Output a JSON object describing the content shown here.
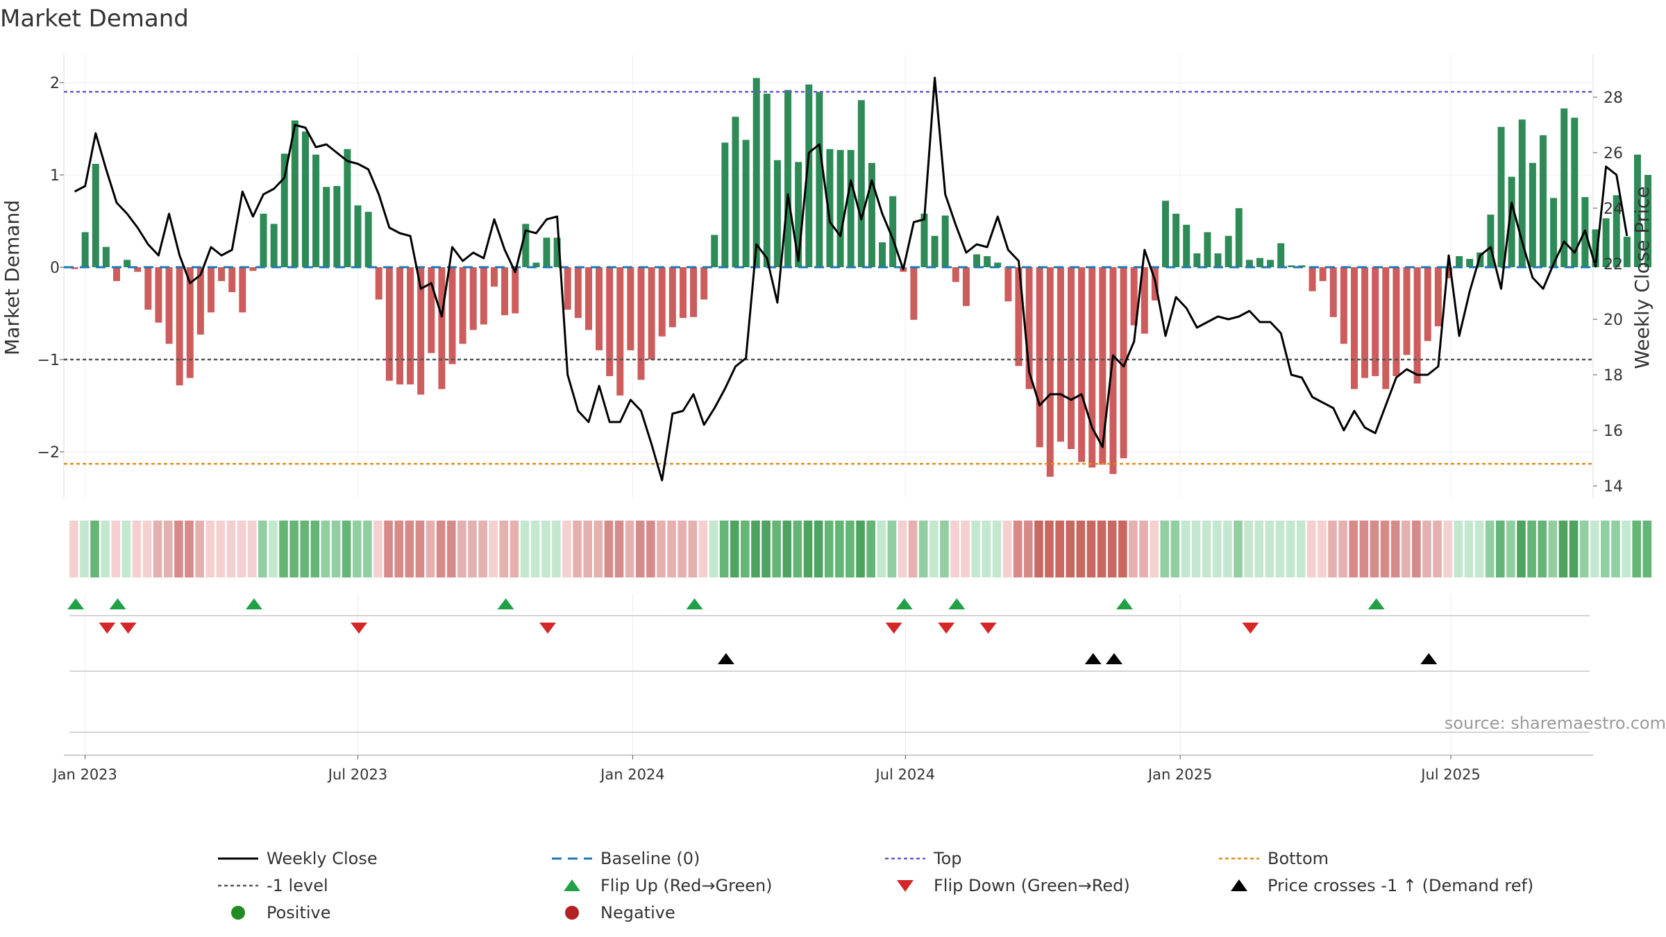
{
  "chart_data": {
    "type": "bar",
    "title": "Market Demand",
    "ylabel_left": "Market Demand",
    "ylabel_right": "Weekly Close Price",
    "left_ylim": [
      -2.4,
      2.2
    ],
    "left_ticks": [
      2,
      1,
      0,
      -1,
      -2
    ],
    "left_tick_labels": [
      "2",
      "1",
      "0",
      "−1",
      "−2"
    ],
    "right_ylim": [
      13.5,
      29.4
    ],
    "right_ticks": [
      28,
      26,
      24,
      22,
      20,
      18,
      16,
      14
    ],
    "right_tick_labels": [
      "28",
      "26",
      "24",
      "22",
      "20",
      "18",
      "16",
      "14"
    ],
    "x_ticks": [
      {
        "label": "Jan 2023",
        "week": 1.5
      },
      {
        "label": "Jul 2023",
        "week": 27.5
      },
      {
        "label": "Jan 2024",
        "week": 53.7
      },
      {
        "label": "Jul 2024",
        "week": 79.7
      },
      {
        "label": "Jan 2025",
        "week": 105.9
      },
      {
        "label": "Jul 2025",
        "week": 131.7
      }
    ],
    "reference_lines": {
      "top": 1.9,
      "bottom": -2.13,
      "minus_one": -1.0,
      "baseline": 0.0
    },
    "demand": [
      -0.02,
      0.38,
      1.12,
      0.22,
      -0.15,
      0.08,
      -0.05,
      -0.46,
      -0.6,
      -0.83,
      -1.28,
      -1.2,
      -0.73,
      -0.49,
      -0.15,
      -0.27,
      -0.49,
      -0.04,
      0.58,
      0.47,
      1.23,
      1.59,
      1.47,
      1.22,
      0.87,
      0.88,
      1.28,
      0.67,
      0.6,
      -0.35,
      -1.23,
      -1.27,
      -1.27,
      -1.38,
      -0.93,
      -1.32,
      -1.05,
      -0.83,
      -0.68,
      -0.62,
      -0.21,
      -0.52,
      -0.5,
      0.47,
      0.05,
      0.32,
      0.32,
      -0.46,
      -0.55,
      -0.68,
      -0.9,
      -1.18,
      -1.39,
      -0.9,
      -1.22,
      -1.0,
      -0.75,
      -0.65,
      -0.55,
      -0.54,
      -0.35,
      0.35,
      1.35,
      1.63,
      1.38,
      2.05,
      1.88,
      1.16,
      1.92,
      1.14,
      1.98,
      1.9,
      1.28,
      1.27,
      1.27,
      1.81,
      1.13,
      0.27,
      0.77,
      -0.05,
      -0.57,
      0.58,
      0.34,
      0.56,
      -0.16,
      -0.42,
      0.14,
      0.12,
      0.05,
      -0.37,
      -1.07,
      -1.32,
      -1.95,
      -2.27,
      -1.89,
      -1.97,
      -2.11,
      -2.17,
      -2.14,
      -2.24,
      -2.07,
      -0.63,
      -0.72,
      -0.36,
      0.72,
      0.58,
      0.46,
      0.15,
      0.38,
      0.15,
      0.34,
      0.64,
      0.08,
      0.1,
      0.08,
      0.26,
      0.02,
      0.02,
      -0.26,
      -0.15,
      -0.54,
      -0.83,
      -1.32,
      -1.2,
      -1.18,
      -1.32,
      -1.18,
      -0.95,
      -1.26,
      -0.8,
      -0.64,
      -0.12,
      0.12,
      0.09,
      0.16,
      0.57,
      1.52,
      0.98,
      1.6,
      1.13,
      1.43,
      0.75,
      1.72,
      1.62,
      0.76,
      0.41,
      0.53,
      0.78,
      0.33,
      1.22,
      1.0
    ],
    "weekly_close": [
      24.6,
      24.8,
      26.7,
      25.4,
      24.2,
      23.8,
      23.3,
      22.7,
      22.3,
      23.8,
      22.3,
      21.3,
      21.6,
      22.6,
      22.3,
      22.5,
      24.6,
      23.7,
      24.5,
      24.7,
      25.1,
      27.0,
      26.9,
      26.2,
      26.3,
      26.0,
      25.7,
      25.6,
      25.4,
      24.5,
      23.3,
      23.1,
      23.0,
      21.1,
      21.3,
      20.1,
      22.6,
      22.1,
      22.4,
      22.2,
      23.6,
      22.5,
      21.7,
      23.2,
      23.1,
      23.6,
      23.7,
      18.0,
      16.7,
      16.3,
      17.6,
      16.3,
      16.3,
      17.1,
      16.7,
      15.5,
      14.2,
      16.6,
      16.7,
      17.3,
      16.2,
      16.8,
      17.5,
      18.3,
      18.6,
      22.7,
      22.2,
      20.6,
      24.5,
      22.1,
      26.0,
      26.3,
      23.5,
      23.0,
      25.0,
      23.6,
      25.0,
      23.8,
      22.9,
      21.8,
      23.5,
      23.6,
      28.7,
      24.5,
      23.4,
      22.4,
      22.7,
      22.6,
      23.7,
      22.5,
      22.1,
      18.1,
      16.9,
      17.3,
      17.3,
      17.1,
      17.3,
      16.1,
      15.4,
      18.7,
      18.3,
      19.2,
      22.5,
      21.4,
      19.4,
      20.8,
      20.4,
      19.7,
      19.9,
      20.1,
      20.0,
      20.1,
      20.3,
      19.9,
      19.9,
      19.5,
      18.0,
      17.9,
      17.2,
      17.0,
      16.8,
      16.0,
      16.7,
      16.1,
      15.9,
      16.9,
      17.9,
      18.2,
      18.0,
      18.0,
      18.3,
      22.3,
      19.4,
      21.0,
      22.3,
      22.6,
      21.1,
      24.2,
      22.8,
      21.5,
      21.1,
      22.0,
      22.8,
      22.4,
      23.2,
      21.9,
      25.5,
      25.2,
      23.0
    ],
    "flip_up_weeks": [
      0.6,
      4.6,
      17.6,
      41.6,
      59.6,
      79.6,
      84.6,
      100.6,
      124.6
    ],
    "flip_down_weeks": [
      3.6,
      5.6,
      27.6,
      45.6,
      78.6,
      83.6,
      87.6,
      112.6
    ],
    "price_cross_weeks": [
      62.6,
      97.6,
      99.6,
      129.6
    ],
    "heat_colors": {
      "pos": [
        [
          196,
          231,
          207
        ],
        [
          145,
          207,
          163
        ],
        [
          100,
          181,
          118
        ],
        [
          78,
          163,
          96
        ]
      ],
      "neg": [
        [
          244,
          208,
          208
        ],
        [
          228,
          176,
          176
        ],
        [
          214,
          138,
          138
        ],
        [
          200,
          104,
          96
        ]
      ]
    },
    "colors": {
      "pos_bar": "#2e8b57",
      "neg_bar": "#cd5c5c",
      "line": "#000000",
      "baseline": "#1f77b4",
      "top": "#6a5acd",
      "bottom": "#e08c1f",
      "minus_one": "#555555",
      "flip_up": "#22a047",
      "flip_down": "#d62728",
      "cross": "#000000",
      "positive_dot": "#228b22",
      "negative_dot": "#b22222"
    }
  },
  "legend": [
    {
      "key": "close",
      "label": "Weekly Close"
    },
    {
      "key": "baseline",
      "label": "Baseline (0)"
    },
    {
      "key": "top",
      "label": "Top"
    },
    {
      "key": "bottom",
      "label": "Bottom"
    },
    {
      "key": "minus1",
      "label": "-1 level"
    },
    {
      "key": "flipup",
      "label": "Flip Up (Red→Green)"
    },
    {
      "key": "flipdown",
      "label": "Flip Down (Green→Red)"
    },
    {
      "key": "cross",
      "label": "Price crosses -1 ↑ (Demand ref)"
    },
    {
      "key": "pos",
      "label": "Positive"
    },
    {
      "key": "neg",
      "label": "Negative"
    }
  ],
  "source_text": "source: sharemaestro.com"
}
